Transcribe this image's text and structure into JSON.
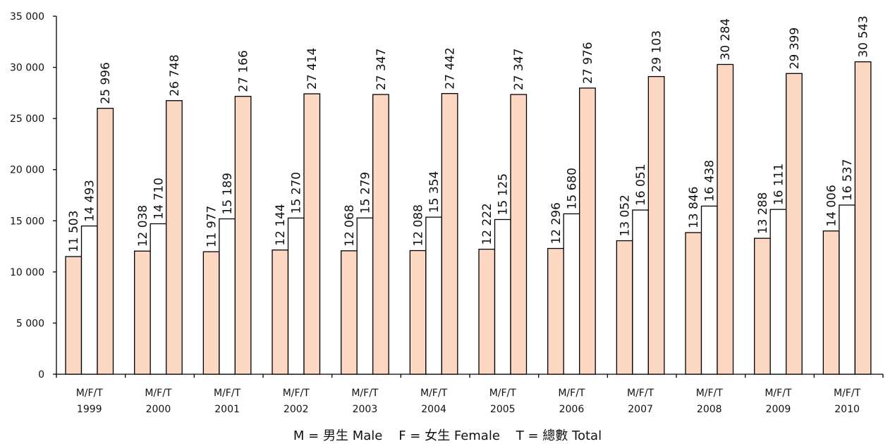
{
  "chart_data": {
    "type": "bar",
    "categories": [
      "1999",
      "2000",
      "2001",
      "2002",
      "2003",
      "2004",
      "2005",
      "2006",
      "2007",
      "2008",
      "2009",
      "2010"
    ],
    "category_prefix": "M/F/T",
    "series": [
      {
        "name": "M",
        "values": [
          11503,
          12038,
          11977,
          12144,
          12068,
          12088,
          12222,
          12296,
          13052,
          13846,
          13288,
          14006
        ],
        "color": "#fcd7c2"
      },
      {
        "name": "F",
        "values": [
          14493,
          14710,
          15189,
          15270,
          15279,
          15354,
          15125,
          15680,
          16051,
          16438,
          16111,
          16537
        ],
        "color": "#ffffff"
      },
      {
        "name": "T",
        "values": [
          25996,
          26748,
          27166,
          27414,
          27347,
          27442,
          27347,
          27976,
          29103,
          30284,
          29399,
          30543
        ],
        "color": "#fcd7c2"
      }
    ],
    "data_labels": [
      [
        "11 503",
        "12 038",
        "11 977",
        "12 144",
        "12 068",
        "12 088",
        "12 222",
        "12 296",
        "13 052",
        "13 846",
        "13 288",
        "14 006"
      ],
      [
        "14 493",
        "14 710",
        "15 189",
        "15 270",
        "15 279",
        "15 354",
        "15 125",
        "15 680",
        "16 051",
        "16 438",
        "16 111",
        "16 537"
      ],
      [
        "25 996",
        "26 748",
        "27 166",
        "27 414",
        "27 347",
        "27 442",
        "27 347",
        "27 976",
        "29 103",
        "30 284",
        "29 399",
        "30 543"
      ]
    ],
    "yticks": [
      0,
      5000,
      10000,
      15000,
      20000,
      25000,
      30000,
      35000
    ],
    "ytick_labels": [
      "0",
      "5 000",
      "10 000",
      "15 000",
      "20 000",
      "25 000",
      "30 000",
      "35 000"
    ],
    "ylim": [
      0,
      35000
    ],
    "grid": false,
    "legend": "bottom",
    "legend_text": "M = 男生 Male    F = 女生 Female    T = 總數 Total",
    "title": "",
    "xlabel": "",
    "ylabel": ""
  }
}
